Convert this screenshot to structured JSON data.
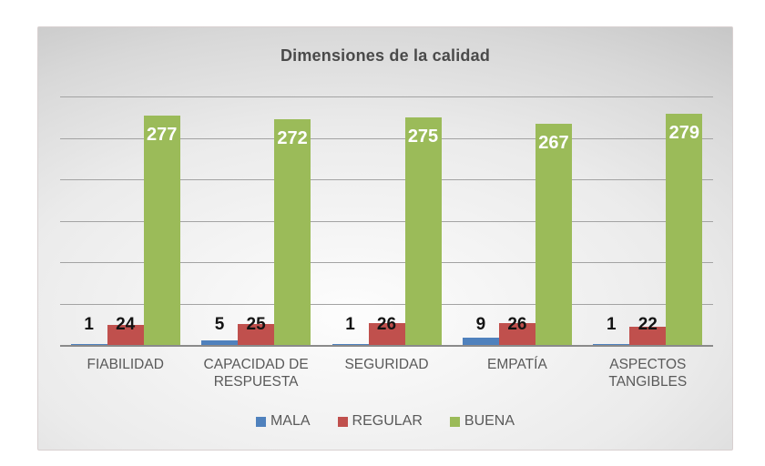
{
  "title": "Dimensiones de la calidad",
  "colors": {
    "mala": "#4f81bd",
    "regular": "#c0504d",
    "buena": "#9bbb59",
    "title_text": "#4a4a4a",
    "axis_text": "#595959",
    "gridline": "#a3a3a3",
    "axis_line": "#8a8a8a",
    "panel_background": "#dedede",
    "value_label_dark": "#141414",
    "value_label_light": "#ffffff"
  },
  "legend": {
    "items": [
      {
        "label": "MALA",
        "color": "#4f81bd"
      },
      {
        "label": "REGULAR",
        "color": "#c0504d"
      },
      {
        "label": "BUENA",
        "color": "#9bbb59"
      }
    ],
    "position": "bottom"
  },
  "chart_data": {
    "type": "bar",
    "title": "Dimensiones de la calidad",
    "categories": [
      "FIABILIDAD",
      "CAPACIDAD DE RESPUESTA",
      "SEGURIDAD",
      "EMPATÍA",
      "ASPECTOS TANGIBLES"
    ],
    "series": [
      {
        "name": "MALA",
        "color": "#4f81bd",
        "values": [
          1,
          5,
          1,
          9,
          1
        ]
      },
      {
        "name": "REGULAR",
        "color": "#c0504d",
        "values": [
          24,
          25,
          26,
          26,
          22
        ]
      },
      {
        "name": "BUENA",
        "color": "#9bbb59",
        "values": [
          277,
          272,
          275,
          267,
          279
        ]
      }
    ],
    "xlabel": "",
    "ylabel": "",
    "ylim": [
      0,
      300
    ],
    "gridline_interval": 50,
    "grid": true,
    "y_axis_tick_labels_visible": false,
    "data_labels": "on",
    "legend_position": "bottom"
  }
}
